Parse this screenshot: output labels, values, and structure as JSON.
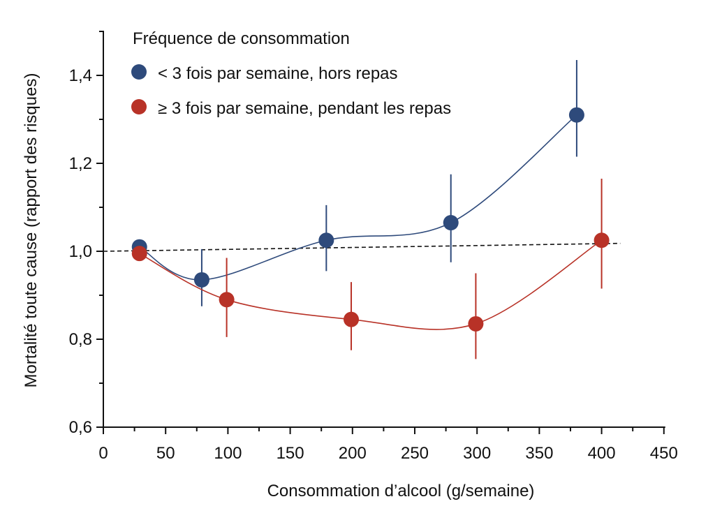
{
  "chart_data": {
    "type": "line",
    "title": "",
    "xlabel": "Consommation d’alcool (g/semaine)",
    "ylabel": "Mortalité toute cause (rapport des risques)",
    "xlim": [
      0,
      450
    ],
    "ylim": [
      0.6,
      1.5
    ],
    "x_ticks": [
      0,
      50,
      100,
      150,
      200,
      250,
      300,
      350,
      400,
      450
    ],
    "x_tick_labels": [
      "0",
      "50",
      "100",
      "150",
      "200",
      "250",
      "300",
      "350",
      "400",
      "450"
    ],
    "y_ticks": [
      0.6,
      0.8,
      1.0,
      1.2,
      1.4
    ],
    "y_tick_labels": [
      "0,6",
      "0,8",
      "1,0",
      "1,2",
      "1,4"
    ],
    "grid": false,
    "legend": {
      "title": "Fréquence de consommation",
      "placement": "top-left"
    },
    "reference_line": {
      "style": "dashed",
      "color": "#111111",
      "x": [
        0,
        415
      ],
      "y": [
        1.0,
        1.018
      ]
    },
    "series": [
      {
        "name": "< 3 fois par semaine, hors repas",
        "color": "#2e4a7b",
        "x": [
          29,
          79,
          179,
          279,
          380
        ],
        "y": [
          1.01,
          0.935,
          1.025,
          1.065,
          1.31
        ],
        "err_low": [
          0.99,
          0.875,
          0.955,
          0.975,
          1.215
        ],
        "err_high": [
          1.025,
          1.005,
          1.105,
          1.175,
          1.435
        ]
      },
      {
        "name": "≥ 3 fois par semaine, pendant les repas",
        "color": "#b83227",
        "x": [
          29,
          99,
          199,
          299,
          400
        ],
        "y": [
          0.995,
          0.89,
          0.845,
          0.835,
          1.025
        ],
        "err_low": [
          0.985,
          0.805,
          0.775,
          0.755,
          0.915
        ],
        "err_high": [
          1.005,
          0.985,
          0.93,
          0.95,
          1.165
        ]
      }
    ]
  }
}
